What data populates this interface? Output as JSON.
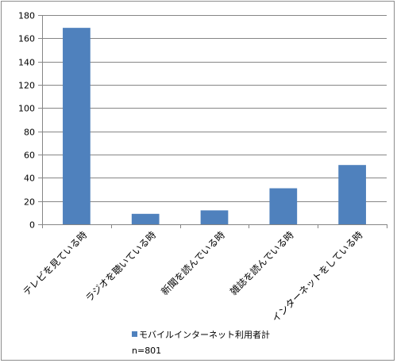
{
  "chart_data": {
    "type": "bar",
    "categories": [
      "テレビを見ている時",
      "ラジオを聴いている時",
      "新聞を読んでいる時",
      "雑誌を読んでいる時",
      "インターネットをしている時"
    ],
    "series": [
      {
        "name": "モバイルインターネット利用者計",
        "values": [
          169,
          9,
          12,
          31,
          51
        ],
        "color": "#4f81bd"
      }
    ],
    "ylim": [
      0,
      180
    ],
    "yticks": [
      0,
      20,
      40,
      60,
      80,
      100,
      120,
      140,
      160,
      180
    ],
    "grid": true,
    "legend_position": "bottom",
    "note": "n=801"
  }
}
